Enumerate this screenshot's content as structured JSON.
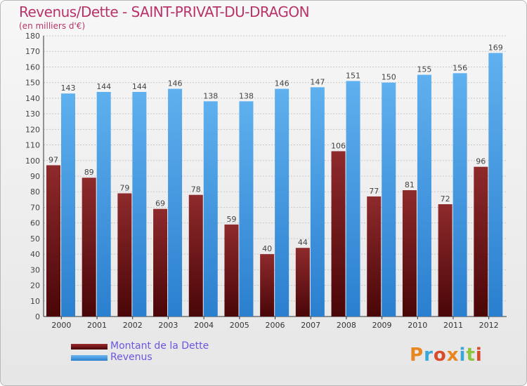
{
  "header": {
    "title": "Revenus/Dette - SAINT-PRIVAT-DU-DRAGON",
    "subtitle": "(en milliers d'€)"
  },
  "legend": {
    "debt_label": "Montant de la Dette",
    "revenue_label": "Revenus"
  },
  "logo": {
    "text": "Proxiti"
  },
  "colors": {
    "debt": "#7a1a1c",
    "revenue": "#3a93dc",
    "title": "#b8336a"
  },
  "chart_data": {
    "type": "bar",
    "title": "Revenus/Dette - SAINT-PRIVAT-DU-DRAGON",
    "subtitle": "(en milliers d'€)",
    "categories": [
      "2000",
      "2001",
      "2002",
      "2003",
      "2004",
      "2005",
      "2006",
      "2007",
      "2008",
      "2009",
      "2010",
      "2011",
      "2012"
    ],
    "series": [
      {
        "name": "Montant de la Dette",
        "values": [
          97,
          89,
          79,
          69,
          78,
          59,
          40,
          44,
          106,
          77,
          81,
          72,
          96
        ]
      },
      {
        "name": "Revenus",
        "values": [
          143,
          144,
          144,
          146,
          138,
          138,
          146,
          147,
          151,
          150,
          155,
          156,
          169
        ]
      }
    ],
    "ylim": [
      0,
      180
    ],
    "yticks": [
      0,
      10,
      20,
      30,
      40,
      50,
      60,
      70,
      80,
      90,
      100,
      110,
      120,
      130,
      140,
      150,
      160,
      170,
      180
    ],
    "grid": true,
    "legend_position": "bottom-left"
  }
}
